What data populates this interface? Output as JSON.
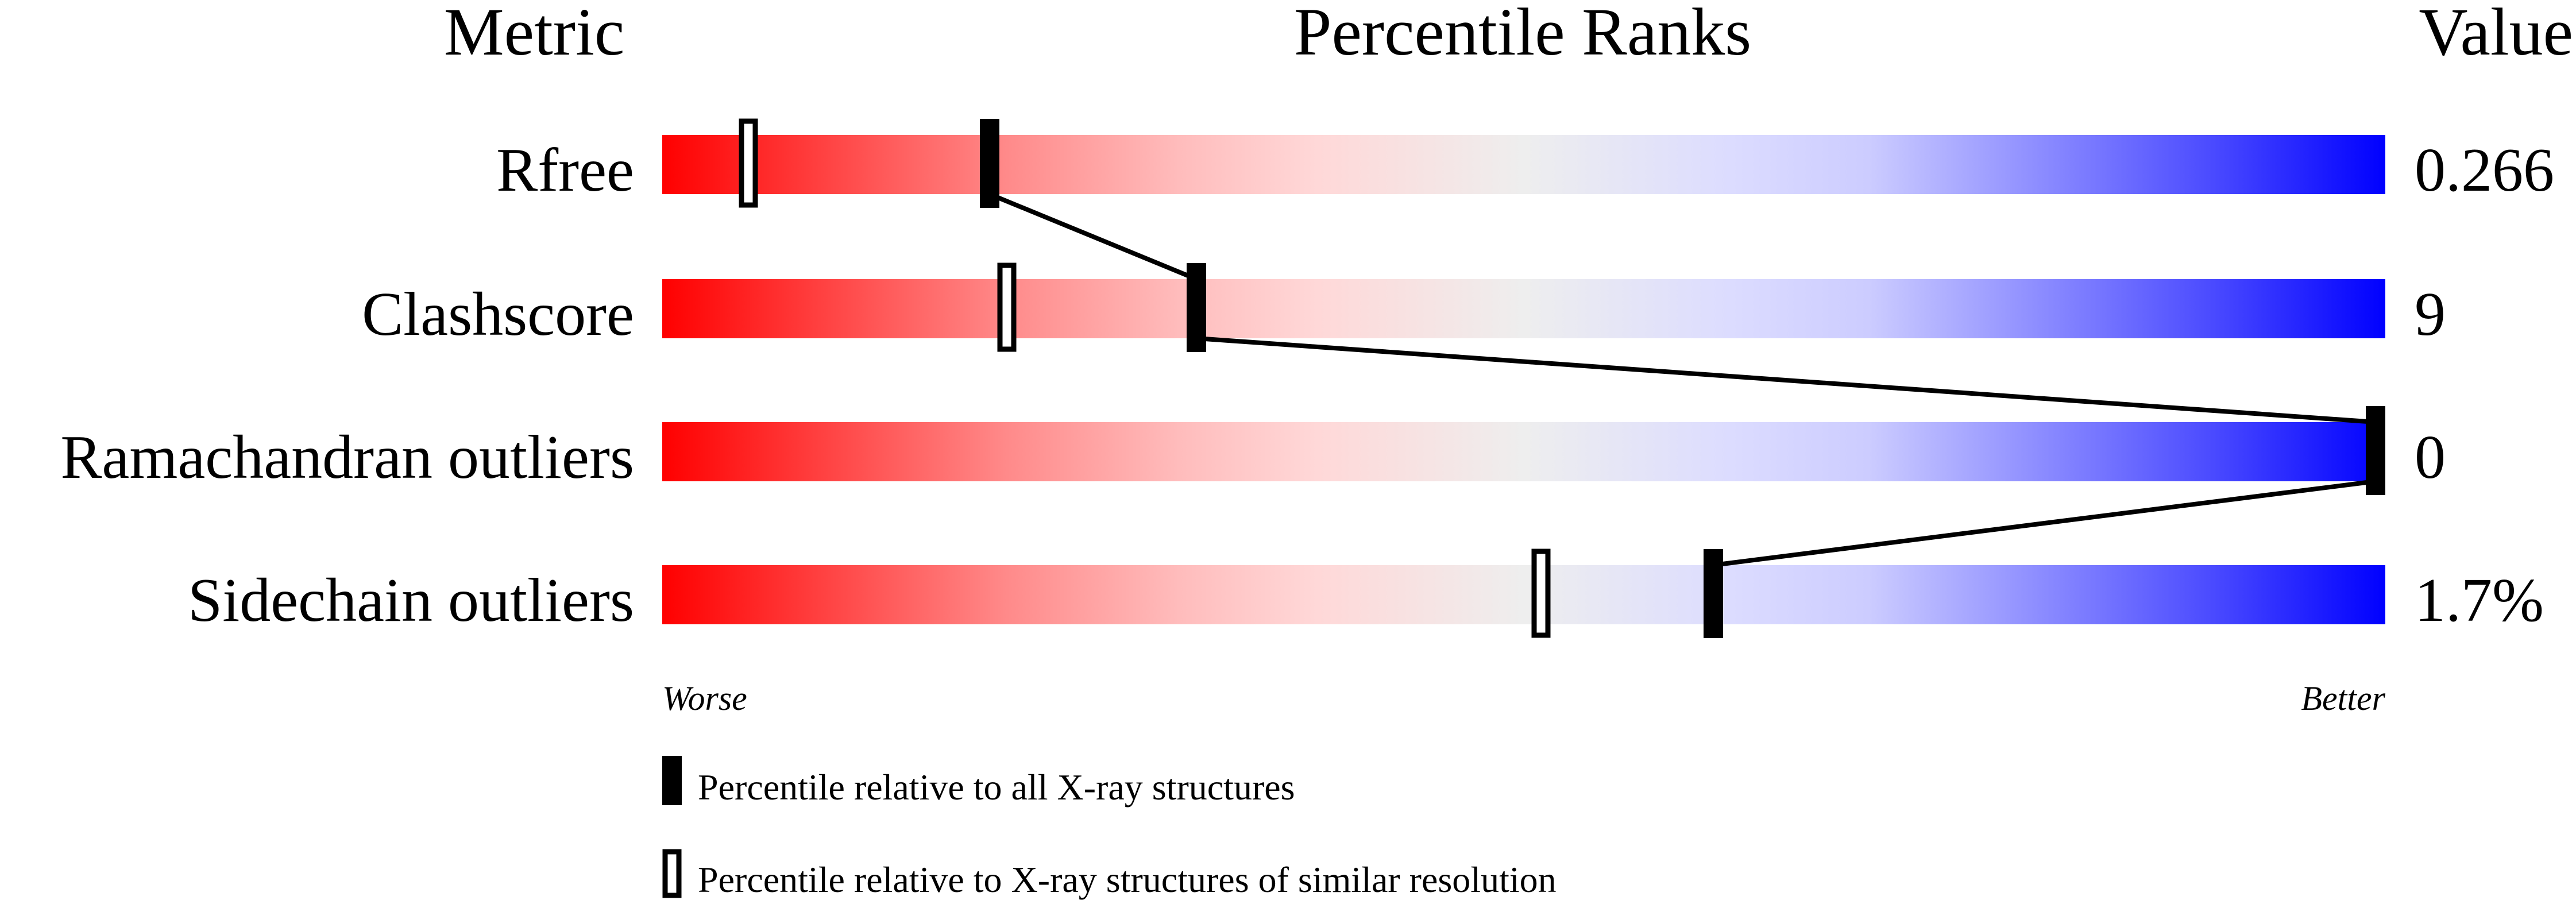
{
  "chart_data": {
    "type": "table",
    "headers": {
      "metric": "Metric",
      "ranks": "Percentile Ranks",
      "value": "Value"
    },
    "axis": {
      "worse": "Worse",
      "better": "Better",
      "xlim": [
        0,
        100
      ]
    },
    "rows": [
      {
        "metric": "Rfree",
        "value": "0.266",
        "percentile_all": 19,
        "percentile_similar": 5
      },
      {
        "metric": "Clashscore",
        "value": "9",
        "percentile_all": 31,
        "percentile_similar": 20
      },
      {
        "metric": "Ramachandran outliers",
        "value": "0",
        "percentile_all": 100,
        "percentile_similar": null
      },
      {
        "metric": "Sidechain outliers",
        "value": "1.7%",
        "percentile_all": 61,
        "percentile_similar": 51
      }
    ],
    "legend": {
      "all": "Percentile relative to all X-ray structures",
      "similar": "Percentile relative to X-ray structures of similar resolution"
    },
    "colors": {
      "worse": "#ff0000",
      "middle": "#eeeeee",
      "better": "#0000ff",
      "marker": "#000000"
    }
  }
}
